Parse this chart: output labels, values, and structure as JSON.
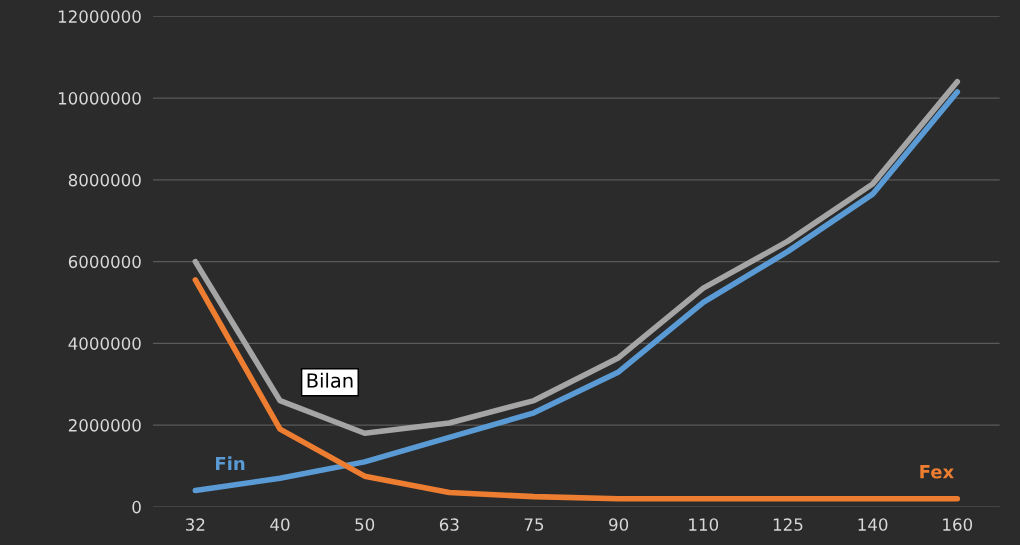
{
  "chart_data": {
    "type": "line",
    "categories": [
      "32",
      "40",
      "50",
      "63",
      "75",
      "90",
      "110",
      "125",
      "140",
      "160"
    ],
    "series": [
      {
        "name": "Bilan",
        "color": "#a5a5a5",
        "values": [
          6000000,
          2600000,
          1800000,
          2050000,
          2600000,
          3650000,
          5350000,
          6500000,
          7900000,
          10400000
        ]
      },
      {
        "name": "Fin",
        "color": "#5b9bd5",
        "values": [
          400000,
          700000,
          1100000,
          1700000,
          2300000,
          3300000,
          5000000,
          6250000,
          7650000,
          10150000
        ]
      },
      {
        "name": "Fex",
        "color": "#ed7d31",
        "values": [
          5550000,
          1900000,
          750000,
          350000,
          250000,
          200000,
          200000,
          200000,
          200000,
          200000
        ]
      }
    ],
    "ylim": [
      0,
      12000000
    ],
    "yticks": [
      0,
      2000000,
      4000000,
      6000000,
      8000000,
      10000000,
      12000000
    ],
    "grid": "y",
    "legend": false,
    "marker": "none",
    "line_style": "solid"
  }
}
